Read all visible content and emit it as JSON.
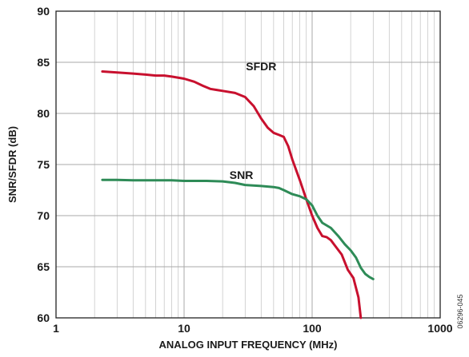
{
  "chart_data": {
    "type": "line",
    "xlabel": "ANALOG INPUT FREQUENCY (MHz)",
    "ylabel": "SNR/SFDR (dB)",
    "xscale": "log",
    "xlim": [
      1,
      1000
    ],
    "ylim": [
      60,
      90
    ],
    "xticks": [
      1,
      10,
      100,
      1000
    ],
    "xtick_labels": [
      "1",
      "10",
      "100",
      "1000"
    ],
    "yticks": [
      60,
      65,
      70,
      75,
      80,
      85,
      90
    ],
    "ytick_labels": [
      "60",
      "65",
      "70",
      "75",
      "80",
      "85",
      "90"
    ],
    "grid": true,
    "figure_id": "06296-045",
    "series": [
      {
        "name": "SFDR",
        "color": "#c8102e",
        "x": [
          2.3,
          3,
          4,
          5,
          6,
          7,
          8,
          10,
          12,
          14,
          16,
          18,
          20,
          25,
          30,
          35,
          40,
          45,
          50,
          55,
          60,
          65,
          70,
          80,
          90,
          100,
          110,
          120,
          130,
          140,
          150,
          170,
          190,
          210,
          230,
          240
        ],
        "y": [
          84.1,
          84.0,
          83.9,
          83.8,
          83.7,
          83.7,
          83.6,
          83.4,
          83.1,
          82.7,
          82.4,
          82.3,
          82.2,
          82.0,
          81.6,
          80.7,
          79.5,
          78.6,
          78.1,
          77.9,
          77.7,
          76.8,
          75.5,
          73.5,
          71.6,
          70.0,
          68.8,
          68.0,
          67.9,
          67.6,
          67.1,
          66.2,
          64.7,
          63.9,
          62.0,
          60.0
        ]
      },
      {
        "name": "SNR",
        "color": "#2e8b57",
        "x": [
          2.3,
          3,
          4,
          5,
          6,
          8,
          10,
          15,
          20,
          25,
          30,
          40,
          50,
          55,
          60,
          70,
          80,
          90,
          100,
          110,
          120,
          140,
          160,
          180,
          200,
          220,
          240,
          260,
          280,
          300
        ],
        "y": [
          73.5,
          73.5,
          73.45,
          73.45,
          73.45,
          73.45,
          73.4,
          73.4,
          73.35,
          73.2,
          73.0,
          72.9,
          72.8,
          72.7,
          72.5,
          72.1,
          71.9,
          71.6,
          71.0,
          70.0,
          69.3,
          68.8,
          68.0,
          67.2,
          66.6,
          65.9,
          64.9,
          64.3,
          64.0,
          63.8
        ]
      }
    ],
    "annotations": [
      {
        "text": "SFDR",
        "x": 40,
        "y": 84.2
      },
      {
        "text": "SNR",
        "x": 28,
        "y": 73.6
      }
    ]
  }
}
